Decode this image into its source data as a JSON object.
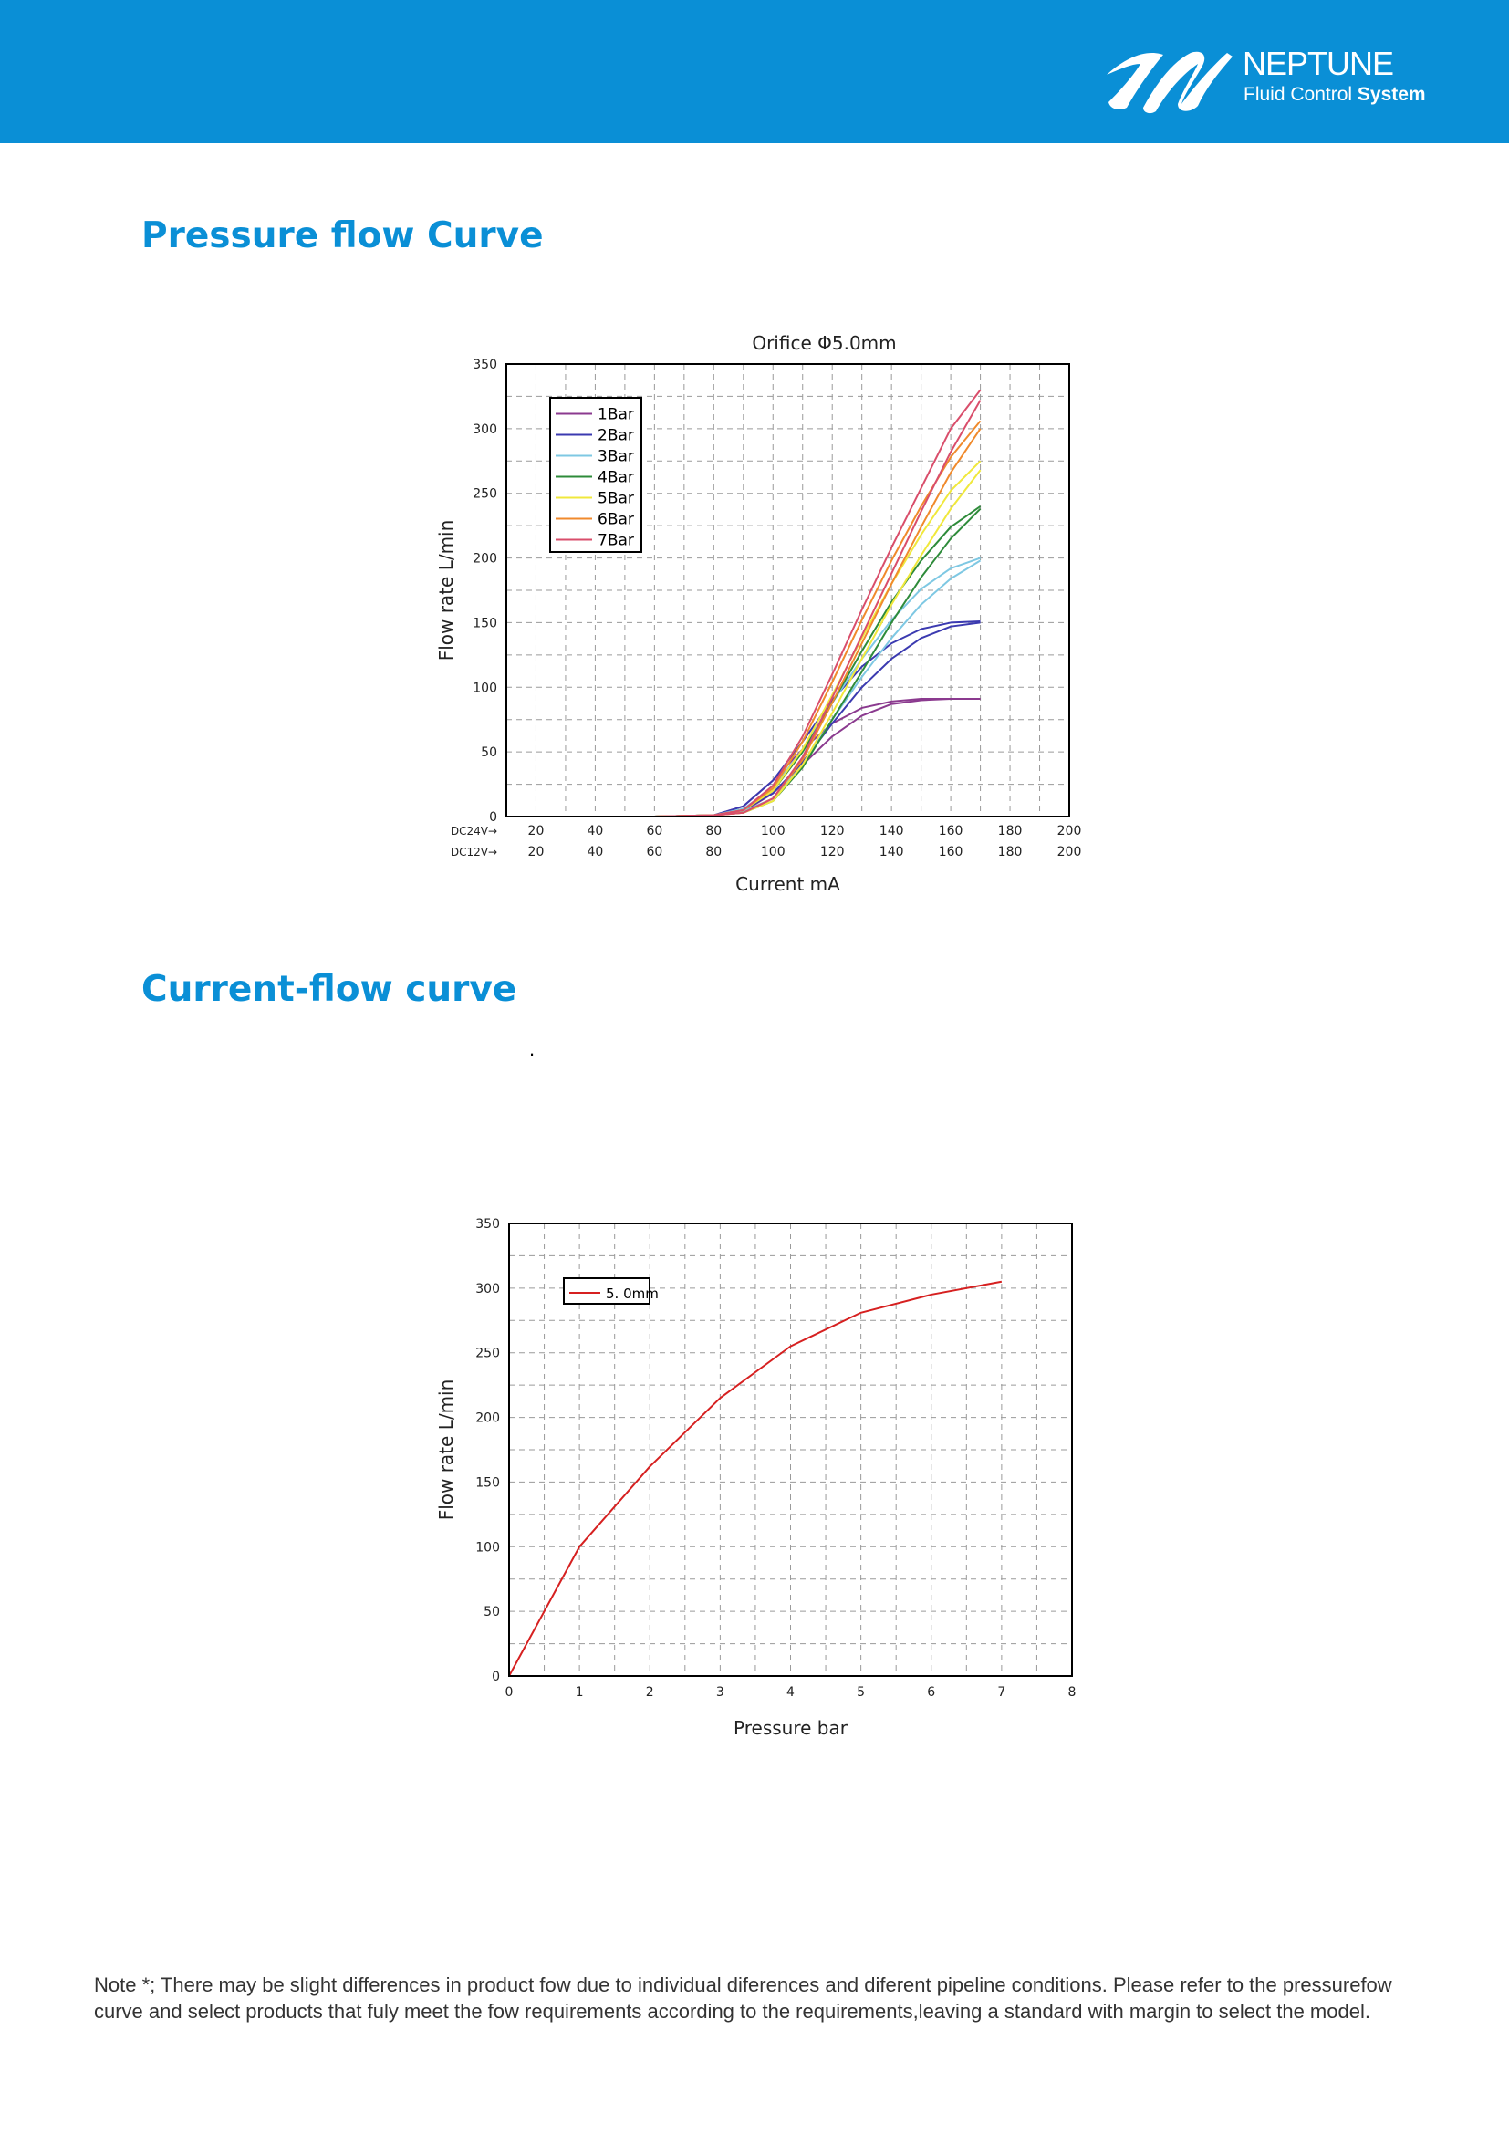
{
  "brand": {
    "name": "NEPTUNE",
    "tagline_regular": "Fluid Control ",
    "tagline_bold": "System",
    "color": "#0a8fd6"
  },
  "sections": {
    "pressure_flow_title": "Pressure flow Curve",
    "current_flow_title": "Current-flow curve",
    "stray_mark": "."
  },
  "note": "Note *; There may be slight differences in product fow due to individual diferences and diferent pipeline conditions. Please refer to the pressurefow curve and select products that fuly meet the fow requirements according to the requirements,leaving a standard with margin to select the model.",
  "chart_data": [
    {
      "type": "line",
      "title": "Orifice Φ5.0mm",
      "xlabel": "Current mA",
      "ylabel": "Flow rate L/min",
      "xlim": [
        10,
        200
      ],
      "ylim": [
        0,
        350
      ],
      "y_ticks": [
        0,
        50,
        100,
        150,
        200,
        250,
        300,
        350
      ],
      "x_ticks": [
        20,
        40,
        60,
        80,
        100,
        120,
        140,
        160,
        180,
        200
      ],
      "x_tick_rows": [
        {
          "label": "DC24V→",
          "values": [
            "20",
            "40",
            "60",
            "80",
            "100",
            "120",
            "140",
            "160",
            "180",
            "200"
          ]
        },
        {
          "label": "DC12V→",
          "values": [
            "20",
            "40",
            "60",
            "80",
            "100",
            "120",
            "140",
            "160",
            "180",
            "200"
          ]
        }
      ],
      "grid": true,
      "legend_position": "top-left",
      "series": [
        {
          "name": "1Bar",
          "color": "#8b3a8f",
          "x": [
            60,
            80,
            90,
            100,
            110,
            120,
            130,
            140,
            150,
            160,
            170
          ],
          "y": [
            0,
            1,
            4,
            18,
            40,
            62,
            78,
            87,
            90,
            91,
            91
          ],
          "x2": [
            60,
            80,
            90,
            100,
            110,
            120,
            130,
            140,
            150,
            160,
            170
          ],
          "y2": [
            0,
            1,
            8,
            28,
            52,
            72,
            84,
            89,
            91,
            91,
            91
          ]
        },
        {
          "name": "2Bar",
          "color": "#3b3ab0",
          "x": [
            60,
            80,
            90,
            100,
            110,
            120,
            130,
            140,
            150,
            160,
            170
          ],
          "y": [
            0,
            1,
            5,
            18,
            42,
            72,
            100,
            122,
            138,
            147,
            150
          ],
          "x2": [
            60,
            80,
            90,
            100,
            110,
            120,
            130,
            140,
            150,
            160,
            170
          ],
          "y2": [
            0,
            1,
            8,
            28,
            58,
            90,
            116,
            134,
            145,
            150,
            151
          ]
        },
        {
          "name": "3Bar",
          "color": "#7ec8e3",
          "x": [
            60,
            80,
            90,
            100,
            110,
            120,
            130,
            140,
            150,
            160,
            170
          ],
          "y": [
            0,
            1,
            4,
            14,
            40,
            75,
            108,
            138,
            164,
            184,
            198
          ],
          "x2": [
            60,
            80,
            90,
            100,
            110,
            120,
            130,
            140,
            150,
            160,
            170
          ],
          "y2": [
            0,
            1,
            6,
            22,
            52,
            88,
            122,
            152,
            176,
            192,
            200
          ]
        },
        {
          "name": "4Bar",
          "color": "#2e8b3a",
          "x": [
            60,
            80,
            90,
            100,
            110,
            120,
            130,
            140,
            150,
            160,
            170
          ],
          "y": [
            0,
            1,
            3,
            12,
            38,
            75,
            112,
            150,
            185,
            215,
            238
          ],
          "x2": [
            60,
            80,
            90,
            100,
            110,
            120,
            130,
            140,
            150,
            160,
            170
          ],
          "y2": [
            0,
            1,
            5,
            20,
            50,
            88,
            128,
            166,
            198,
            224,
            240
          ]
        },
        {
          "name": "5Bar",
          "color": "#f0e83c",
          "x": [
            60,
            80,
            90,
            100,
            110,
            120,
            130,
            140,
            150,
            160,
            170
          ],
          "y": [
            0,
            1,
            3,
            12,
            40,
            80,
            122,
            164,
            202,
            238,
            268
          ],
          "x2": [
            60,
            80,
            90,
            100,
            110,
            120,
            130,
            140,
            150,
            160,
            170
          ],
          "y2": [
            0,
            1,
            5,
            20,
            52,
            94,
            138,
            180,
            218,
            252,
            275
          ]
        },
        {
          "name": "6Bar",
          "color": "#f08a2c",
          "x": [
            60,
            80,
            90,
            100,
            110,
            120,
            130,
            140,
            150,
            160,
            170
          ],
          "y": [
            0,
            1,
            3,
            14,
            44,
            88,
            134,
            180,
            224,
            266,
            300
          ],
          "x2": [
            60,
            80,
            90,
            100,
            110,
            120,
            130,
            140,
            150,
            160,
            170
          ],
          "y2": [
            0,
            1,
            5,
            22,
            58,
            104,
            152,
            198,
            240,
            278,
            306
          ]
        },
        {
          "name": "7Bar",
          "color": "#d94e6b",
          "x": [
            60,
            80,
            90,
            100,
            110,
            120,
            130,
            140,
            150,
            160,
            170
          ],
          "y": [
            0,
            1,
            3,
            14,
            46,
            92,
            140,
            188,
            236,
            282,
            322
          ],
          "x2": [
            60,
            80,
            90,
            100,
            110,
            120,
            130,
            140,
            150,
            160,
            170
          ],
          "y2": [
            0,
            1,
            5,
            24,
            62,
            110,
            160,
            208,
            254,
            300,
            330
          ]
        }
      ]
    },
    {
      "type": "line",
      "title": "",
      "xlabel": "Pressure bar",
      "ylabel": "Flow rate L/min",
      "xlim": [
        0,
        8
      ],
      "ylim": [
        0,
        350
      ],
      "y_ticks": [
        0,
        50,
        100,
        150,
        200,
        250,
        300,
        350
      ],
      "x_ticks": [
        0,
        1,
        2,
        3,
        4,
        5,
        6,
        7,
        8
      ],
      "grid": true,
      "legend_position": "top-left",
      "series": [
        {
          "name": "5. 0mm",
          "color": "#d62020",
          "x": [
            0,
            1,
            2,
            3,
            4,
            5,
            6,
            7
          ],
          "y": [
            0,
            100,
            162,
            215,
            255,
            281,
            295,
            305
          ]
        }
      ]
    }
  ]
}
